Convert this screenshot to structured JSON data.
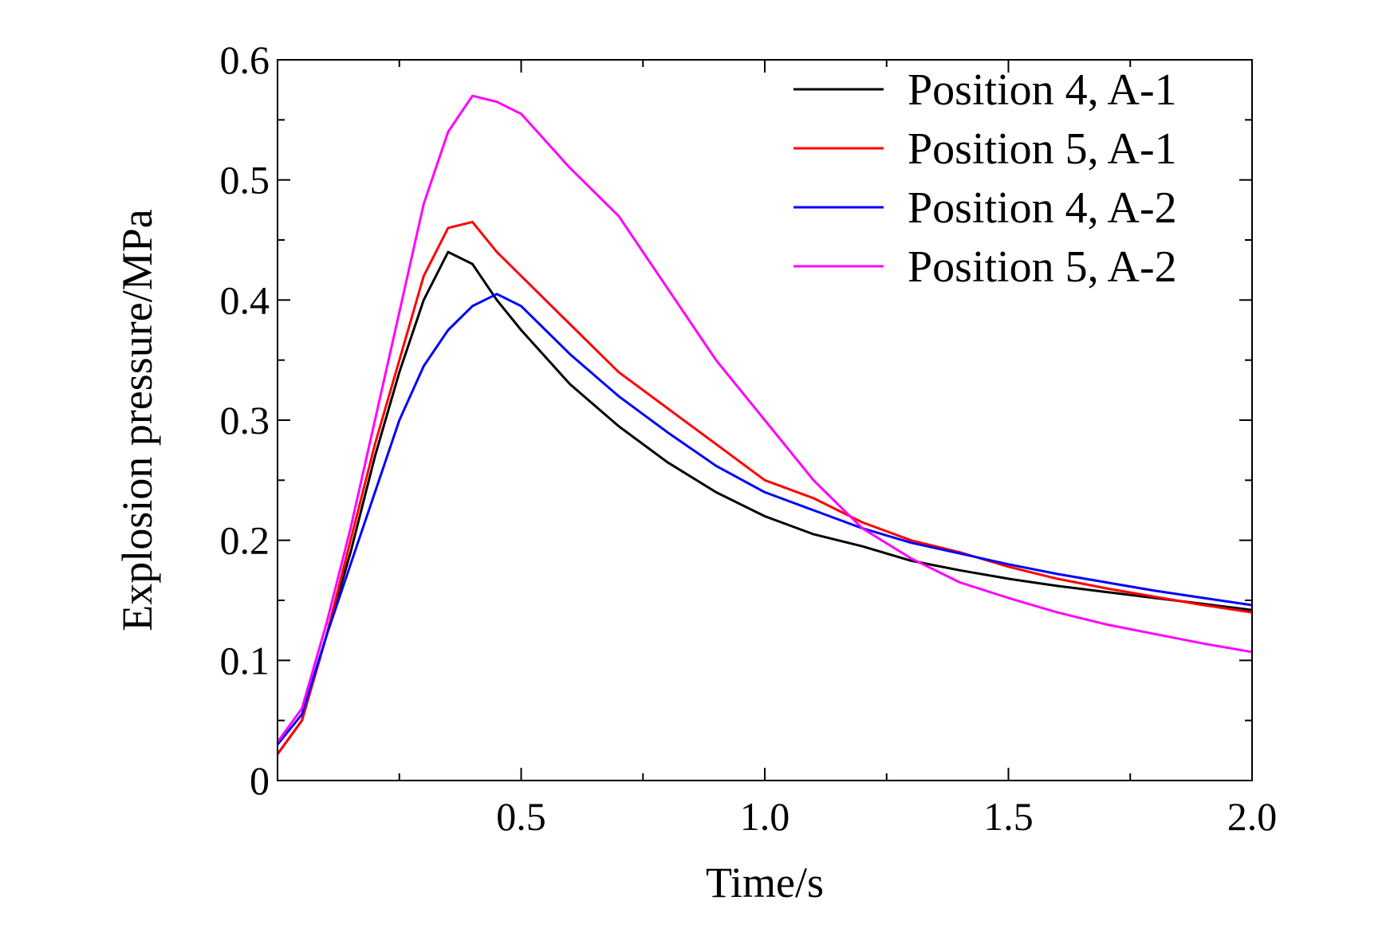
{
  "chart_data": {
    "type": "line",
    "xlabel": "Time/s",
    "ylabel": "Explosion pressure/MPa",
    "xlim": [
      0,
      2.0
    ],
    "ylim": [
      0,
      0.6
    ],
    "x_ticks": [
      0.5,
      1.0,
      1.5,
      2.0
    ],
    "x_tick_labels": [
      "0.5",
      "1.0",
      "1.5",
      "2.0"
    ],
    "y_ticks": [
      0,
      0.1,
      0.2,
      0.3,
      0.4,
      0.5,
      0.6
    ],
    "y_tick_labels": [
      "0",
      "0.1",
      "0.2",
      "0.3",
      "0.4",
      "0.5",
      "0.6"
    ],
    "grid": false,
    "legend_position": "top-right",
    "series": [
      {
        "name": "Position 4, A-1",
        "color": "#000000",
        "points": [
          [
            0,
            0.022
          ],
          [
            0.05,
            0.05
          ],
          [
            0.1,
            0.12
          ],
          [
            0.15,
            0.19
          ],
          [
            0.2,
            0.27
          ],
          [
            0.25,
            0.34
          ],
          [
            0.3,
            0.4
          ],
          [
            0.35,
            0.44
          ],
          [
            0.4,
            0.43
          ],
          [
            0.45,
            0.4
          ],
          [
            0.5,
            0.375
          ],
          [
            0.6,
            0.33
          ],
          [
            0.7,
            0.295
          ],
          [
            0.8,
            0.265
          ],
          [
            0.9,
            0.24
          ],
          [
            1.0,
            0.22
          ],
          [
            1.1,
            0.205
          ],
          [
            1.2,
            0.195
          ],
          [
            1.3,
            0.183
          ],
          [
            1.4,
            0.175
          ],
          [
            1.5,
            0.168
          ],
          [
            1.6,
            0.162
          ],
          [
            1.7,
            0.157
          ],
          [
            1.8,
            0.152
          ],
          [
            1.9,
            0.147
          ],
          [
            2.0,
            0.142
          ]
        ]
      },
      {
        "name": "Position 5, A-1",
        "color": "#ff0000",
        "points": [
          [
            0,
            0.022
          ],
          [
            0.05,
            0.05
          ],
          [
            0.1,
            0.12
          ],
          [
            0.15,
            0.2
          ],
          [
            0.2,
            0.28
          ],
          [
            0.25,
            0.35
          ],
          [
            0.3,
            0.42
          ],
          [
            0.35,
            0.46
          ],
          [
            0.4,
            0.465
          ],
          [
            0.45,
            0.44
          ],
          [
            0.5,
            0.42
          ],
          [
            0.6,
            0.38
          ],
          [
            0.7,
            0.34
          ],
          [
            0.8,
            0.31
          ],
          [
            0.9,
            0.28
          ],
          [
            1.0,
            0.25
          ],
          [
            1.1,
            0.235
          ],
          [
            1.2,
            0.215
          ],
          [
            1.3,
            0.2
          ],
          [
            1.4,
            0.19
          ],
          [
            1.5,
            0.178
          ],
          [
            1.6,
            0.168
          ],
          [
            1.7,
            0.16
          ],
          [
            1.8,
            0.153
          ],
          [
            1.9,
            0.146
          ],
          [
            2.0,
            0.14
          ]
        ]
      },
      {
        "name": "Position 4, A-2",
        "color": "#0000ff",
        "points": [
          [
            0,
            0.03
          ],
          [
            0.05,
            0.055
          ],
          [
            0.1,
            0.12
          ],
          [
            0.15,
            0.18
          ],
          [
            0.2,
            0.24
          ],
          [
            0.25,
            0.3
          ],
          [
            0.3,
            0.345
          ],
          [
            0.35,
            0.375
          ],
          [
            0.4,
            0.395
          ],
          [
            0.45,
            0.405
          ],
          [
            0.5,
            0.395
          ],
          [
            0.6,
            0.355
          ],
          [
            0.7,
            0.32
          ],
          [
            0.8,
            0.29
          ],
          [
            0.9,
            0.262
          ],
          [
            1.0,
            0.24
          ],
          [
            1.1,
            0.225
          ],
          [
            1.2,
            0.21
          ],
          [
            1.3,
            0.198
          ],
          [
            1.4,
            0.189
          ],
          [
            1.5,
            0.18
          ],
          [
            1.6,
            0.172
          ],
          [
            1.7,
            0.165
          ],
          [
            1.8,
            0.158
          ],
          [
            1.9,
            0.152
          ],
          [
            2.0,
            0.146
          ]
        ]
      },
      {
        "name": "Position 5, A-2",
        "color": "#ff00ff",
        "points": [
          [
            0,
            0.032
          ],
          [
            0.05,
            0.06
          ],
          [
            0.1,
            0.13
          ],
          [
            0.15,
            0.21
          ],
          [
            0.2,
            0.3
          ],
          [
            0.25,
            0.39
          ],
          [
            0.3,
            0.48
          ],
          [
            0.35,
            0.54
          ],
          [
            0.4,
            0.57
          ],
          [
            0.45,
            0.565
          ],
          [
            0.5,
            0.555
          ],
          [
            0.6,
            0.51
          ],
          [
            0.7,
            0.47
          ],
          [
            0.8,
            0.41
          ],
          [
            0.9,
            0.35
          ],
          [
            1.0,
            0.3
          ],
          [
            1.1,
            0.25
          ],
          [
            1.2,
            0.21
          ],
          [
            1.3,
            0.185
          ],
          [
            1.4,
            0.165
          ],
          [
            1.5,
            0.152
          ],
          [
            1.6,
            0.14
          ],
          [
            1.7,
            0.13
          ],
          [
            1.8,
            0.122
          ],
          [
            1.9,
            0.114
          ],
          [
            2.0,
            0.107
          ]
        ]
      }
    ]
  }
}
